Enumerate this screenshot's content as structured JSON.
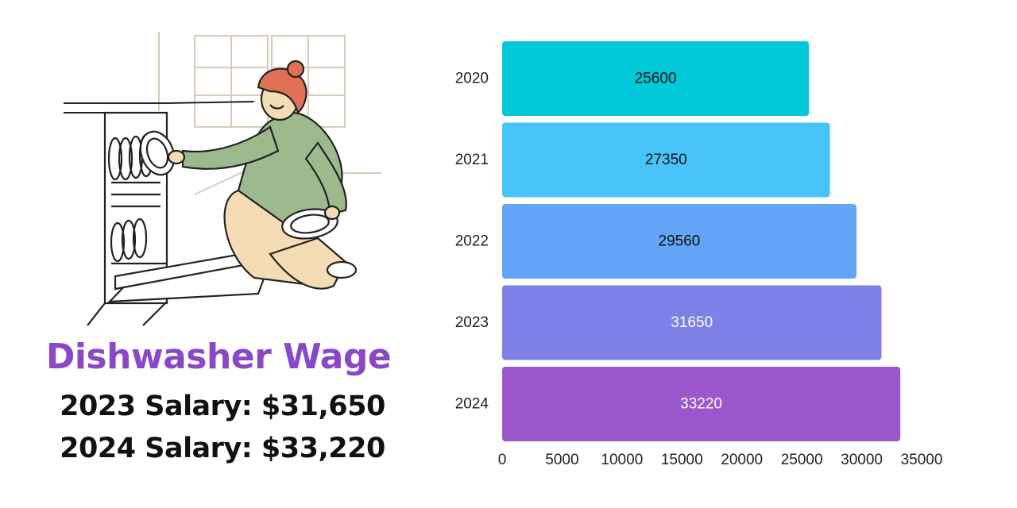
{
  "header": {
    "title": "Dishwasher Wage",
    "salary_2023": "2023 Salary: $31,650",
    "salary_2024": "2024 Salary: $33,220"
  },
  "illustration": {
    "icon": "woman-loading-dishwasher-illustration"
  },
  "chart_data": {
    "type": "bar",
    "orientation": "horizontal",
    "categories": [
      "2020",
      "2021",
      "2022",
      "2023",
      "2024"
    ],
    "values": [
      25600,
      27350,
      29560,
      31650,
      33220
    ],
    "data_labels": [
      "25600",
      "27350",
      "29560",
      "31650",
      "33220"
    ],
    "colors": [
      "#00c8d9",
      "#48c4fb",
      "#62a5f6",
      "#7d80e6",
      "#9a58cc"
    ],
    "label_colors": [
      "#111111",
      "#111111",
      "#111111",
      "#ffffff",
      "#ffffff"
    ],
    "xticks": [
      0,
      5000,
      10000,
      15000,
      20000,
      25000,
      30000,
      35000
    ],
    "xtick_labels": [
      "0",
      "5000",
      "10000",
      "15000",
      "20000",
      "25000",
      "30000",
      "35000"
    ],
    "xlim": [
      0,
      35000
    ],
    "title": "",
    "xlabel": "",
    "ylabel": "",
    "grid": false,
    "legend": "none"
  }
}
